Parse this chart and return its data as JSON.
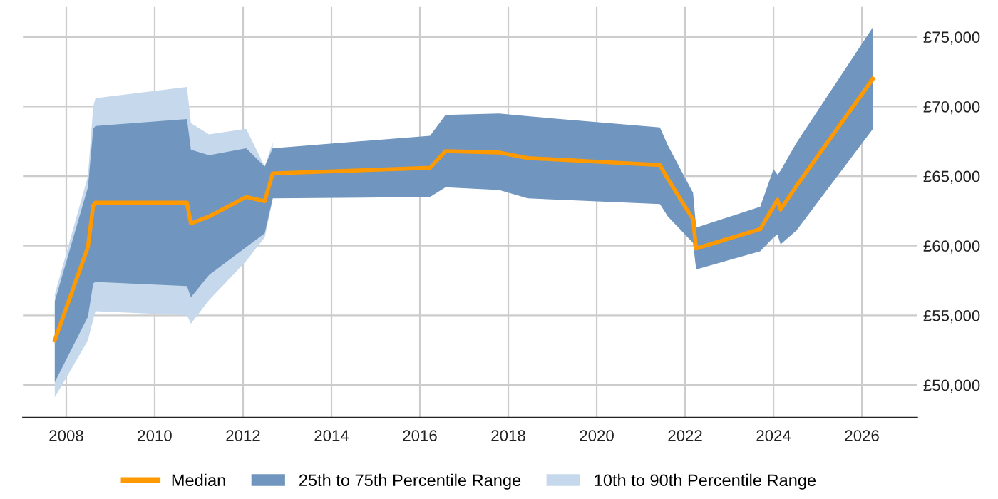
{
  "chart_data": {
    "type": "line",
    "x": [
      2007.74,
      2008.49,
      2008.61,
      2008.66,
      2010.73,
      2010.82,
      2011.23,
      2012.07,
      2012.49,
      2012.67,
      2016.23,
      2016.58,
      2017.79,
      2018.44,
      2021.43,
      2021.61,
      2022.18,
      2022.25,
      2023.7,
      2024.0,
      2024.09,
      2024.16,
      2024.52,
      2026.25
    ],
    "series": [
      {
        "name": "10th to 90th Percentile Range",
        "type": "area",
        "color": "#c6d8ec",
        "values": [
          null,
          null,
          null,
          null,
          null,
          null,
          null,
          null,
          null,
          null,
          null,
          null,
          null,
          null,
          null,
          null,
          null,
          null,
          null,
          null,
          null,
          null,
          null,
          null
        ],
        "lower": [
          49100,
          53200,
          54700,
          55300,
          55000,
          54400,
          56100,
          58900,
          60600,
          63300,
          null,
          null,
          null,
          null,
          null,
          null,
          null,
          null,
          null,
          null,
          null,
          null,
          null,
          null
        ],
        "upper": [
          56500,
          65000,
          70000,
          70600,
          71400,
          68800,
          68000,
          68400,
          65700,
          67400,
          null,
          null,
          null,
          null,
          null,
          null,
          null,
          null,
          null,
          null,
          null,
          null,
          null,
          null
        ]
      },
      {
        "name": "25th to 75th Percentile Range",
        "type": "area",
        "color": "#7095bf",
        "values": [
          null,
          null,
          null,
          null,
          null,
          null,
          null,
          null,
          null,
          null,
          null,
          null,
          null,
          null,
          null,
          null,
          null,
          null,
          null,
          null,
          null,
          null,
          null,
          null
        ],
        "lower": [
          50200,
          54900,
          57300,
          57400,
          57100,
          56300,
          57900,
          59900,
          60900,
          63400,
          63500,
          64200,
          64000,
          63400,
          63000,
          62100,
          60200,
          58300,
          59600,
          60600,
          60800,
          60100,
          61100,
          68400
        ],
        "upper": [
          56000,
          64200,
          68400,
          68600,
          69100,
          66900,
          66500,
          67000,
          65700,
          67000,
          67900,
          69400,
          69500,
          69300,
          68500,
          67200,
          63800,
          61300,
          62800,
          65500,
          65100,
          65400,
          67400,
          75700
        ]
      },
      {
        "name": "Median",
        "color": "#ff9900",
        "values": [
          53200,
          59900,
          62900,
          63100,
          63100,
          61600,
          62100,
          63500,
          63200,
          65200,
          65600,
          66800,
          66700,
          66300,
          65800,
          64800,
          61900,
          59800,
          61200,
          62800,
          63300,
          62600,
          64300,
          72000
        ]
      }
    ],
    "xlim": [
      2007.02,
      2027.25
    ],
    "xticks": [
      2008,
      2010,
      2012,
      2014,
      2016,
      2018,
      2020,
      2022,
      2024,
      2026
    ],
    "ylim": [
      47650,
      77150
    ],
    "yticks": [
      {
        "value": 50000,
        "label": "£50,000"
      },
      {
        "value": 55000,
        "label": "£55,000"
      },
      {
        "value": 60000,
        "label": "£60,000"
      },
      {
        "value": 65000,
        "label": "£65,000"
      },
      {
        "value": 70000,
        "label": "£70,000"
      },
      {
        "value": 75000,
        "label": "£75,000"
      }
    ],
    "grid": true,
    "legend": "bottom",
    "marker": "none",
    "line_style": "solid"
  }
}
